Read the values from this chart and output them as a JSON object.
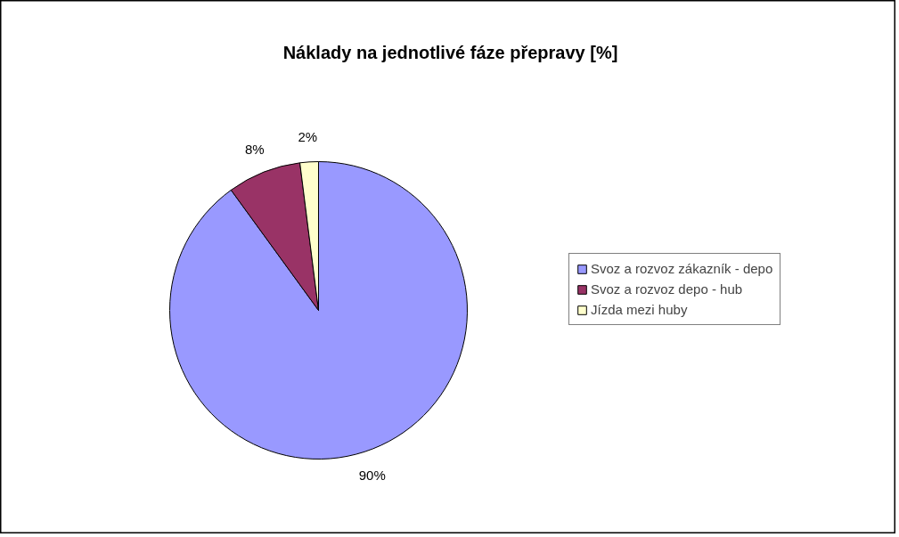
{
  "chart_data": {
    "type": "pie",
    "title": "Náklady na jednotlivé fáze přepravy [%]",
    "categories": [
      "Svoz a rozvoz zákazník - depo",
      "Svoz a rozvoz depo - hub",
      "Jízda mezi huby"
    ],
    "values": [
      90,
      8,
      2
    ],
    "colors": [
      "#9999ff",
      "#993366",
      "#ffffcc"
    ],
    "value_labels": [
      "90%",
      "8%",
      "2%"
    ],
    "legend": "right"
  }
}
